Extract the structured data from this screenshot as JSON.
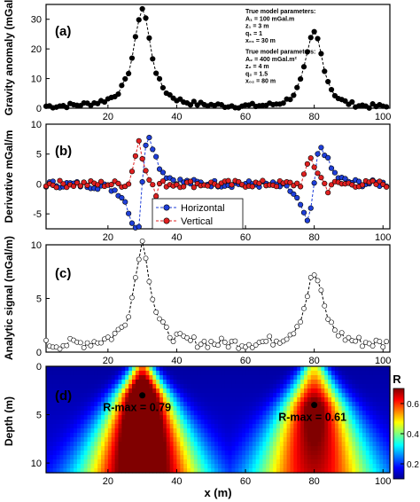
{
  "chart_data": [
    {
      "id": "a",
      "type": "scatter",
      "panel_label": "(a)",
      "ylabel": "Gravity anomaly (mGal)",
      "xlim": [
        2,
        102
      ],
      "ylim": [
        0,
        35
      ],
      "xticks": [
        20,
        40,
        60,
        80,
        100
      ],
      "yticks": [
        0,
        10,
        20,
        30
      ],
      "annotation": [
        "True model parameters:",
        "A₁ = 100 mGal.m",
        "z₁ = 3 m",
        "q₁ = 1",
        "x₀₁ = 30 m",
        "True model parameters:",
        "A₂ = 400 mGal.m²",
        "z₂ = 4 m",
        "q₂ = 1.5",
        "x₀₂ = 80 m"
      ],
      "series": [
        {
          "values": []
        }
      ]
    },
    {
      "id": "b",
      "type": "scatter",
      "panel_label": "(b)",
      "ylabel": "Derivative mGal/m",
      "xlim": [
        2,
        102
      ],
      "ylim": [
        -7.5,
        10
      ],
      "xticks": [
        20,
        40,
        60,
        80,
        100
      ],
      "yticks": [
        -5,
        0,
        5,
        10
      ],
      "series": [
        {
          "name": "Horizontal",
          "color": "#1f3fd9",
          "values": []
        },
        {
          "name": "Vertical",
          "color": "#e02020",
          "values": []
        }
      ]
    },
    {
      "id": "c",
      "type": "scatter",
      "panel_label": "(c)",
      "ylabel": "Analytic signal (mGal/m)",
      "xlim": [
        2,
        102
      ],
      "ylim": [
        0,
        10
      ],
      "xticks": [
        20,
        40,
        60,
        80,
        100
      ],
      "yticks": [
        0,
        5,
        10
      ],
      "series": [
        {
          "values": []
        }
      ]
    },
    {
      "id": "d",
      "type": "heatmap",
      "panel_label": "(d)",
      "ylabel": "Depth (m)",
      "xlabel": "x (m)",
      "xlim": [
        2,
        102
      ],
      "ylim": [
        11,
        0
      ],
      "xticks": [
        20,
        40,
        60,
        80,
        100
      ],
      "yticks": [
        0,
        5,
        10
      ],
      "colorbar": {
        "label": "R",
        "ticks": [
          0.2,
          0.4,
          0.6
        ],
        "range": [
          0.1,
          0.7
        ]
      },
      "markers": [
        {
          "x": 30,
          "depth": 3,
          "label": "R-max = 0.79"
        },
        {
          "x": 80,
          "depth": 4,
          "label": "R-max = 0.61"
        }
      ]
    }
  ]
}
